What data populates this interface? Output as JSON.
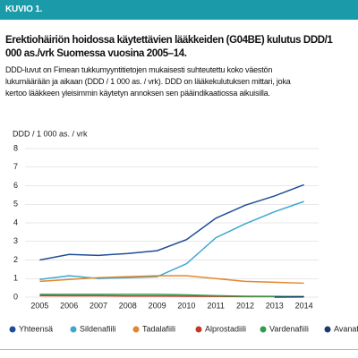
{
  "chart_data": {
    "type": "line",
    "label": "KUVIO 1.",
    "title": "Erektiohäiriön hoidossa käytettävien lääkkeiden (G04BE) kulutus DDD/1 000 as./vrk Suomessa vuosina 2005–14.",
    "subtitle": "DDD-luvut on Fimean tukkumyyntitietojen mukaisesti suhteutettu koko väestön lukumäärään ja aikaan (DDD / 1 000 as. / vrk). DDD on lääkekulutuksen mittari, joka kertoo lääkkeen yleisimmin käytetyn annoksen sen pääindikaatiossa aikuisilla.",
    "y_label": "DDD / 1 000 as. / vrk",
    "categories": [
      "2005",
      "2006",
      "2007",
      "2008",
      "2009",
      "2010",
      "2011",
      "2012",
      "2013",
      "2014"
    ],
    "series": [
      {
        "name": "Yhteensä",
        "color": "#1f4e96",
        "values": [
          2.0,
          2.3,
          2.25,
          2.35,
          2.5,
          3.1,
          4.25,
          4.95,
          5.45,
          6.05
        ]
      },
      {
        "name": "Sildenafiili",
        "color": "#3aa7d0",
        "values": [
          0.95,
          1.15,
          1.0,
          1.05,
          1.1,
          1.8,
          3.2,
          3.95,
          4.6,
          5.15
        ]
      },
      {
        "name": "Tadalafiili",
        "color": "#e3862a",
        "values": [
          0.85,
          0.95,
          1.05,
          1.1,
          1.15,
          1.15,
          1.0,
          0.85,
          0.8,
          0.75
        ]
      },
      {
        "name": "Alprostadiili",
        "color": "#c0392b",
        "values": [
          0.08,
          0.07,
          0.07,
          0.06,
          0.06,
          0.05,
          0.04,
          0.03,
          0.03,
          0.03
        ]
      },
      {
        "name": "Vardenafiili",
        "color": "#2e9e4a",
        "values": [
          0.15,
          0.15,
          0.15,
          0.15,
          0.15,
          0.12,
          0.08,
          0.05,
          0.04,
          0.03
        ]
      },
      {
        "name": "Avanafiili",
        "color": "#1c3a6b",
        "values": [
          null,
          null,
          null,
          null,
          null,
          null,
          null,
          null,
          0.0,
          0.01
        ]
      }
    ],
    "ylim": [
      0,
      8
    ],
    "yticks": [
      0,
      1,
      2,
      3,
      4,
      5,
      6,
      7,
      8
    ],
    "grid": true
  }
}
